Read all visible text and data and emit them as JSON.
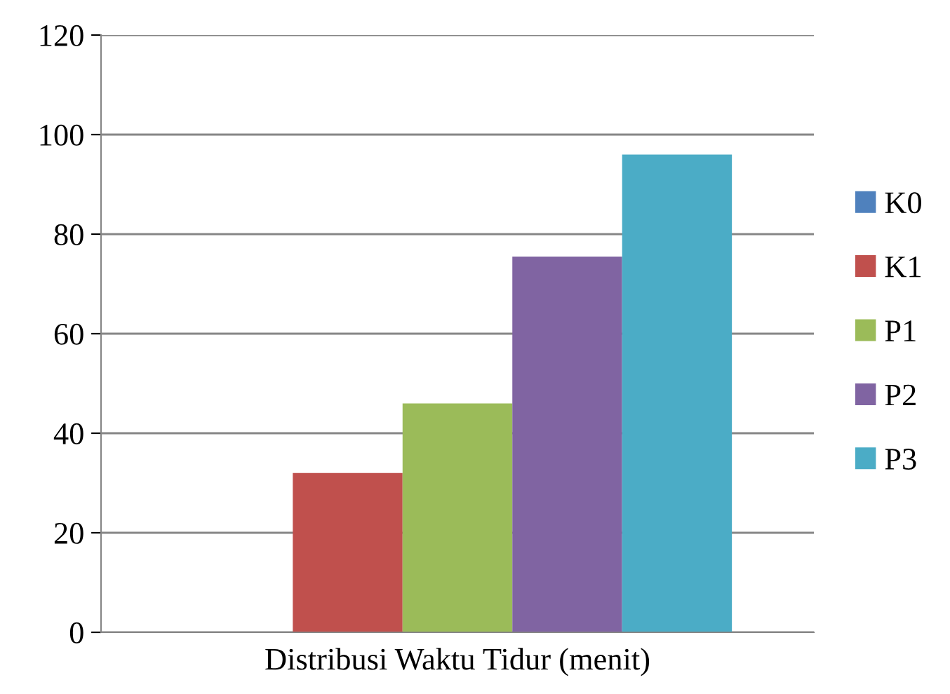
{
  "chart_data": {
    "type": "bar",
    "categories": [
      "Distribusi Waktu Tidur (menit)"
    ],
    "series": [
      {
        "name": "K0",
        "color": "#4f81bd",
        "values": [
          0
        ]
      },
      {
        "name": "K1",
        "color": "#c0504d",
        "values": [
          32
        ]
      },
      {
        "name": "P1",
        "color": "#9bbb59",
        "values": [
          46
        ]
      },
      {
        "name": "P2",
        "color": "#8064a2",
        "values": [
          75.5
        ]
      },
      {
        "name": "P3",
        "color": "#4bacc6",
        "values": [
          96
        ]
      }
    ],
    "ylim": [
      0,
      120
    ],
    "yticks": [
      0,
      20,
      40,
      60,
      80,
      100,
      120
    ],
    "grid": "y",
    "legend": "right"
  }
}
